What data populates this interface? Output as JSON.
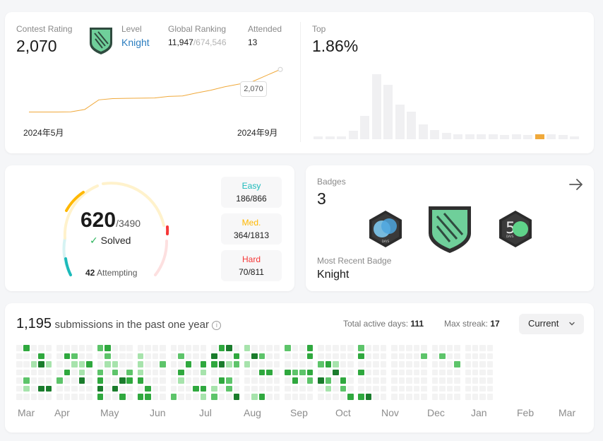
{
  "rating": {
    "label": "Contest Rating",
    "value": "2,070",
    "level_label": "Level",
    "level_value": "Knight",
    "global_label": "Global Ranking",
    "global_value": "11,947",
    "global_total": "/674,546",
    "attended_label": "Attended",
    "attended_value": "13",
    "tooltip_value": "2,070",
    "x_start": "2024年5月",
    "x_end": "2024年9月",
    "top_label": "Top",
    "top_value": "1.86%",
    "accent": "#f0a93b",
    "level_color": "#2b7dbf",
    "chart_data": {
      "type": "line",
      "series": [
        {
          "values": [
            1580,
            1580,
            1580,
            1582,
            1610,
            1720,
            1735,
            1738,
            1740,
            1742,
            1760,
            1765,
            1800,
            1830,
            1870,
            1900,
            1930,
            2000,
            2070
          ]
        }
      ],
      "title": "",
      "xlabel": "",
      "ylabel": ""
    },
    "distribution": [
      2,
      2,
      3,
      8,
      22,
      62,
      52,
      33,
      26,
      14,
      9,
      6,
      5,
      5,
      5,
      5,
      4,
      5,
      4,
      5,
      5,
      4,
      3
    ],
    "distribution_highlight": 19
  },
  "solved": {
    "count": "620",
    "total": "/3490",
    "solved_label": "Solved",
    "attempting_count": "42",
    "attempting_label": "Attempting",
    "easy_label": "Easy",
    "easy_value": "186/866",
    "medium_label": "Med.",
    "medium_value": "364/1813",
    "hard_label": "Hard",
    "hard_value": "70/811",
    "easy_color": "#1cbaba",
    "medium_color": "#ffb800",
    "hard_color": "#f63737"
  },
  "badges": {
    "label": "Badges",
    "count": "3",
    "recent_label": "Most Recent Badge",
    "recent_value": "Knight",
    "badge_names": [
      "annual-badge-icon",
      "knight-badge-icon",
      "fifty-days-badge-icon"
    ]
  },
  "heatmap": {
    "count": "1,195",
    "text": "submissions in the past one year",
    "active_days_label": "Total active days:",
    "active_days_value": "111",
    "max_streak_label": "Max streak:",
    "max_streak_value": "17",
    "select_value": "Current",
    "months": [
      "Mar",
      "Apr",
      "May",
      "Jun",
      "Jul",
      "Aug",
      "Sep",
      "Oct",
      "Nov",
      "Dec",
      "Jan",
      "Feb",
      "Mar"
    ],
    "colors": [
      "#f3f3f3",
      "#a7e3ac",
      "#5dc46a",
      "#2fa83e",
      "#1a7c2c"
    ]
  }
}
